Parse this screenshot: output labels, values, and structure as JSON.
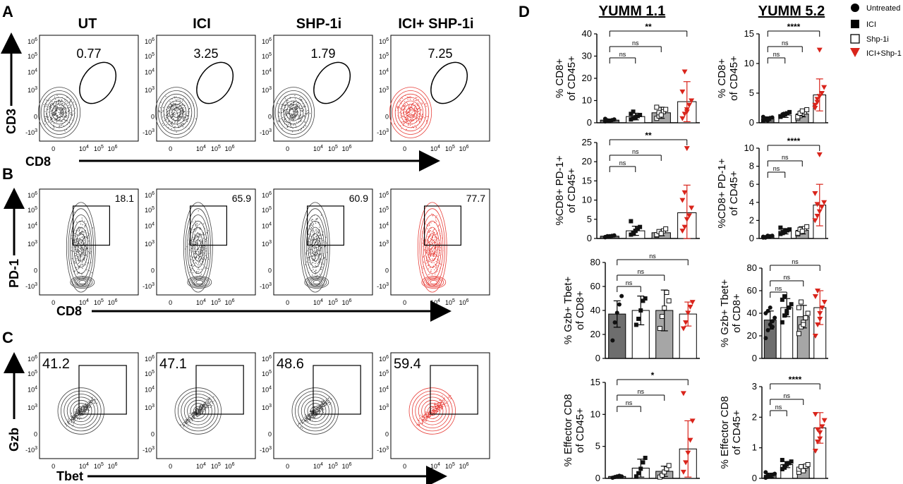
{
  "panel_letters": {
    "a": "A",
    "b": "B",
    "c": "C",
    "d": "D"
  },
  "flow": {
    "conditions": [
      "UT",
      "ICI",
      "SHP-1i",
      "ICI+ SHP-1i"
    ],
    "rowA": {
      "y_axis": "CD3",
      "x_axis": "CD8",
      "values": [
        "0.77",
        "3.25",
        "1.79",
        "7.25"
      ]
    },
    "rowB": {
      "y_axis": "PD-1",
      "x_axis": "CD8",
      "values": [
        "18.1",
        "65.9",
        "60.9",
        "77.7"
      ]
    },
    "rowC": {
      "y_axis": "Gzb",
      "x_axis": "Tbet",
      "values": [
        "41.2",
        "47.1",
        "48.6",
        "59.4"
      ]
    },
    "ticks": {
      "e6": "10",
      "p6": "6",
      "p5": "5",
      "p4": "4",
      "p3": "3",
      "m3": "-10",
      "zero": "0"
    }
  },
  "colors": {
    "untreated": "#6e6e6e",
    "ici": "#ffffff",
    "shp": "#a6a6a6",
    "combo": "#ffffff",
    "red": "#d9241b",
    "flow_grey": "#444444",
    "flow_red": "#e8413b"
  },
  "legend": [
    "Untreated",
    "ICI",
    "Shp-1i",
    "ICI+Shp-1"
  ],
  "chart_data": [
    {
      "type": "bar",
      "title": "YUMM 1.1",
      "ylabel": "% CD8+ of CD45+",
      "ylim": [
        0,
        40
      ],
      "yticks": [
        0,
        10,
        20,
        30,
        40
      ],
      "categories": [
        "Untreated",
        "ICI",
        "Shp-1i",
        "ICI+Shp-1"
      ],
      "values": [
        1.2,
        2.8,
        4.5,
        9.5
      ],
      "errors": [
        0.5,
        1.5,
        2.5,
        9.0
      ],
      "points": [
        [
          0.6,
          0.8,
          1,
          1.2,
          1.5,
          1.8,
          1.1,
          0.9
        ],
        [
          1.5,
          2,
          2.5,
          3,
          3.5,
          4,
          5,
          2.2
        ],
        [
          2,
          3,
          4,
          5,
          6,
          7,
          4.5,
          3.5
        ],
        [
          2,
          4,
          6,
          8,
          10,
          14,
          23,
          5
        ]
      ],
      "annotations": [
        {
          "text": "**",
          "from": 0,
          "to": 3
        },
        {
          "text": "ns",
          "from": 0,
          "to": 2
        },
        {
          "text": "ns",
          "from": 0,
          "to": 1
        }
      ]
    },
    {
      "type": "bar",
      "title": "YUMM 5.2",
      "ylabel": "% CD8+ of CD45+",
      "ylim": [
        0,
        15
      ],
      "yticks": [
        0,
        5,
        10,
        15
      ],
      "categories": [
        "Untreated",
        "ICI",
        "Shp-1i",
        "ICI+Shp-1"
      ],
      "values": [
        0.7,
        1.3,
        1.5,
        4.7
      ],
      "errors": [
        0.3,
        0.4,
        0.5,
        2.7
      ],
      "points": [
        [
          0.3,
          0.5,
          0.7,
          0.8,
          0.9,
          1,
          0.6,
          0.4
        ],
        [
          1,
          1.2,
          1.4,
          1.6,
          1.8,
          1.1,
          1.3,
          1.5
        ],
        [
          0.8,
          1.2,
          1.5,
          1.8,
          2.2,
          1.0,
          1.6,
          2.0
        ],
        [
          2.5,
          3.5,
          4.5,
          5,
          6,
          3,
          4,
          12.3
        ]
      ],
      "annotations": [
        {
          "text": "****",
          "from": 0,
          "to": 3
        },
        {
          "text": "ns",
          "from": 0,
          "to": 2
        },
        {
          "text": "ns",
          "from": 0,
          "to": 1
        }
      ]
    },
    {
      "type": "bar",
      "ylabel": "%CD8+ PD-1+ of CD45+",
      "ylim": [
        0,
        25
      ],
      "yticks": [
        0,
        5,
        10,
        15,
        20,
        25
      ],
      "categories": [
        "Untreated",
        "ICI",
        "Shp-1i",
        "ICI+Shp-1"
      ],
      "values": [
        0.6,
        2.0,
        1.5,
        6.7
      ],
      "errors": [
        0.3,
        1.2,
        0.8,
        7.2
      ],
      "points": [
        [
          0.3,
          0.5,
          0.6,
          0.7,
          0.8,
          0.4,
          0.6,
          0.5
        ],
        [
          1,
          1.5,
          2,
          2.5,
          3,
          4.5,
          1.2,
          2
        ],
        [
          0.8,
          1.2,
          1.5,
          2,
          2.5,
          1,
          1.8,
          1.3
        ],
        [
          2,
          3,
          5,
          6,
          8,
          10,
          12,
          23.5
        ]
      ],
      "annotations": [
        {
          "text": "**",
          "from": 0,
          "to": 3
        },
        {
          "text": "ns",
          "from": 0,
          "to": 2
        },
        {
          "text": "ns",
          "from": 0,
          "to": 1
        }
      ]
    },
    {
      "type": "bar",
      "ylabel": "%CD8+ PD-1+ of CD45+",
      "ylim": [
        0,
        10
      ],
      "yticks": [
        0,
        2,
        4,
        6,
        8,
        10
      ],
      "categories": [
        "Untreated",
        "ICI",
        "Shp-1i",
        "ICI+Shp-1"
      ],
      "values": [
        0.2,
        0.8,
        0.9,
        3.7
      ],
      "errors": [
        0.1,
        0.3,
        0.4,
        2.3
      ],
      "points": [
        [
          0.1,
          0.15,
          0.2,
          0.25,
          0.3,
          0.2,
          0.1,
          0.3
        ],
        [
          0.5,
          0.7,
          0.8,
          0.9,
          1.0,
          1.2,
          0.6,
          0.8
        ],
        [
          0.5,
          0.7,
          0.9,
          1.1,
          1.3,
          0.6,
          1.0,
          0.8
        ],
        [
          2,
          2.5,
          3,
          3.5,
          4,
          5,
          3.8,
          9.3
        ]
      ],
      "annotations": [
        {
          "text": "****",
          "from": 0,
          "to": 3
        },
        {
          "text": "ns",
          "from": 0,
          "to": 2
        },
        {
          "text": "ns",
          "from": 0,
          "to": 1
        }
      ]
    },
    {
      "type": "bar",
      "ylabel": "% Gzb+ Tbet+ of CD8+",
      "ylim": [
        0,
        80
      ],
      "yticks": [
        0,
        20,
        40,
        60,
        80
      ],
      "categories": [
        "Untreated",
        "ICI",
        "Shp-1i",
        "ICI+Shp-1"
      ],
      "values": [
        37,
        40,
        40,
        37
      ],
      "errors": [
        11,
        12,
        17,
        10
      ],
      "points": [
        [
          15,
          30,
          38,
          45,
          52
        ],
        [
          28,
          33,
          40,
          48,
          50
        ],
        [
          25,
          35,
          42,
          55,
          48
        ],
        [
          25,
          30,
          38,
          43,
          47
        ]
      ],
      "annotations": [
        {
          "text": "ns",
          "from": 0,
          "to": 3
        },
        {
          "text": "ns",
          "from": 0,
          "to": 2
        },
        {
          "text": "ns",
          "from": 0,
          "to": 1
        }
      ]
    },
    {
      "type": "bar",
      "ylabel": "% Gzb+ Tbet+ of CD8+",
      "ylim": [
        0,
        80
      ],
      "yticks": [
        0,
        20,
        40,
        60,
        80
      ],
      "categories": [
        "Untreated",
        "ICI",
        "Shp-1i",
        "ICI+Shp-1"
      ],
      "values": [
        34,
        45,
        37,
        45
      ],
      "errors": [
        8,
        8,
        10,
        15
      ],
      "points": [
        [
          18,
          25,
          30,
          33,
          36,
          40,
          42,
          45,
          28
        ],
        [
          32,
          38,
          42,
          45,
          48,
          52,
          55,
          40
        ],
        [
          22,
          28,
          32,
          36,
          40,
          45,
          50,
          30
        ],
        [
          20,
          30,
          40,
          45,
          50,
          55,
          60,
          35
        ]
      ],
      "annotations": [
        {
          "text": "ns",
          "from": 0,
          "to": 3
        },
        {
          "text": "ns",
          "from": 0,
          "to": 2
        },
        {
          "text": "ns",
          "from": 0,
          "to": 1
        }
      ]
    },
    {
      "type": "bar",
      "ylabel": "% Effector CD8 of CD45+",
      "ylim": [
        0,
        15
      ],
      "yticks": [
        0,
        5,
        10,
        15
      ],
      "categories": [
        "Untreated",
        "ICI",
        "Shp-1i",
        "ICI+Shp-1"
      ],
      "values": [
        0.3,
        1.6,
        1.1,
        4.6
      ],
      "errors": [
        0.1,
        1.4,
        0.8,
        4.4
      ],
      "points": [
        [
          0.1,
          0.2,
          0.3,
          0.4,
          0.3
        ],
        [
          0.3,
          0.8,
          1.5,
          2.5,
          3.2
        ],
        [
          0.2,
          0.5,
          1,
          1.5,
          2
        ],
        [
          1,
          2.5,
          4,
          6,
          9,
          13.3
        ]
      ],
      "annotations": [
        {
          "text": "*",
          "from": 0,
          "to": 3
        },
        {
          "text": "ns",
          "from": 0,
          "to": 2
        },
        {
          "text": "ns",
          "from": 0,
          "to": 1
        }
      ]
    },
    {
      "type": "bar",
      "ylabel": "% Effector CD8 of CD45+",
      "ylim": [
        0,
        3
      ],
      "yticks": [
        0,
        1,
        2,
        3
      ],
      "categories": [
        "Untreated",
        "ICI",
        "Shp-1i",
        "ICI+Shp-1"
      ],
      "values": [
        0.1,
        0.45,
        0.35,
        1.65
      ],
      "errors": [
        0.07,
        0.1,
        0.1,
        0.5
      ],
      "points": [
        [
          0.02,
          0.05,
          0.08,
          0.12,
          0.15,
          0.2,
          0.1,
          0.06
        ],
        [
          0.3,
          0.4,
          0.45,
          0.5,
          0.55,
          0.6,
          0.35,
          0.48
        ],
        [
          0.2,
          0.3,
          0.35,
          0.4,
          0.45,
          0.3,
          0.38,
          0.25
        ],
        [
          0.9,
          1.2,
          1.5,
          1.7,
          1.9,
          2.1,
          1.6,
          1.3
        ]
      ],
      "annotations": [
        {
          "text": "****",
          "from": 0,
          "to": 3
        },
        {
          "text": "ns",
          "from": 0,
          "to": 2
        },
        {
          "text": "ns",
          "from": 0,
          "to": 1
        }
      ]
    }
  ]
}
